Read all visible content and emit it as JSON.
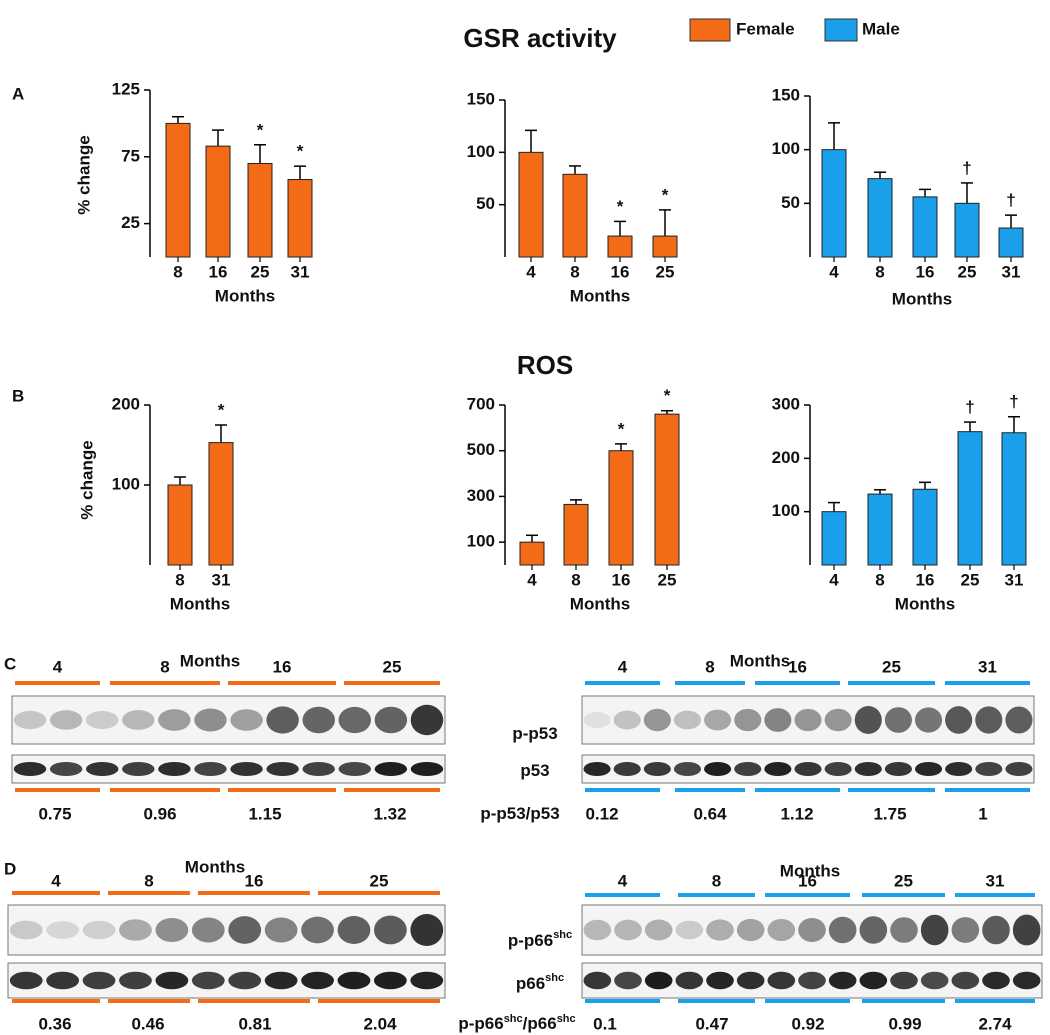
{
  "legend": [
    {
      "name": "Female",
      "color": "#f36a17"
    },
    {
      "name": "Male",
      "color": "#1aa0ea"
    }
  ],
  "panel_labels": [
    "A",
    "B",
    "C",
    "D"
  ],
  "section_titles": [
    "GSR activity",
    "ROS"
  ],
  "chart_data": [
    {
      "type": "bar",
      "categories": [
        8,
        16,
        25,
        31
      ],
      "values": [
        100,
        83,
        70,
        58
      ],
      "errors": [
        5,
        12,
        14,
        10
      ],
      "annotations": [
        null,
        null,
        "*",
        "*"
      ],
      "color": "#f36a17",
      "ylim": [
        0,
        125
      ],
      "yticks": [
        25,
        75,
        125
      ],
      "xlabel": "Months",
      "ylabel": "% change"
    },
    {
      "type": "bar",
      "categories": [
        4,
        8,
        16,
        25
      ],
      "values": [
        100,
        79,
        20,
        20
      ],
      "errors": [
        21,
        8,
        14,
        25
      ],
      "annotations": [
        null,
        null,
        "*",
        "*"
      ],
      "color": "#f36a17",
      "ylim": [
        0,
        150
      ],
      "yticks": [
        50,
        100,
        150
      ],
      "xlabel": "Months"
    },
    {
      "type": "bar",
      "categories": [
        4,
        8,
        16,
        25,
        31
      ],
      "values": [
        100,
        73,
        56,
        50,
        27
      ],
      "errors": [
        25,
        6,
        7,
        19,
        12
      ],
      "annotations": [
        null,
        null,
        null,
        "†",
        "†"
      ],
      "color": "#1aa0ea",
      "ylim": [
        0,
        150
      ],
      "yticks": [
        50,
        100,
        150
      ],
      "xlabel": "Months"
    },
    {
      "type": "bar",
      "categories": [
        8,
        31
      ],
      "values": [
        100,
        153
      ],
      "errors": [
        10,
        22
      ],
      "annotations": [
        null,
        "*"
      ],
      "color": "#f36a17",
      "ylim": [
        0,
        200
      ],
      "yticks": [
        100,
        200
      ],
      "xlabel": "Months",
      "ylabel": "% change"
    },
    {
      "type": "bar",
      "categories": [
        4,
        8,
        16,
        25
      ],
      "values": [
        100,
        265,
        500,
        660
      ],
      "errors": [
        30,
        20,
        30,
        15
      ],
      "annotations": [
        null,
        null,
        "*",
        "*"
      ],
      "color": "#f36a17",
      "ylim": [
        0,
        700
      ],
      "yticks": [
        100,
        300,
        500,
        700
      ],
      "xlabel": "Months"
    },
    {
      "type": "bar",
      "categories": [
        4,
        8,
        16,
        25,
        31
      ],
      "values": [
        100,
        133,
        142,
        250,
        248
      ],
      "errors": [
        17,
        8,
        13,
        18,
        30
      ],
      "annotations": [
        null,
        null,
        null,
        "†",
        "†"
      ],
      "color": "#1aa0ea",
      "ylim": [
        0,
        300
      ],
      "yticks": [
        100,
        200,
        300
      ],
      "xlabel": "Months"
    }
  ],
  "blots": {
    "C": {
      "labels": {
        "phospho": [
          "p-p53"
        ],
        "total": [
          "p53"
        ],
        "ratio": [
          "p-p53/p53"
        ]
      },
      "left": {
        "months": "Months",
        "groups": [
          4,
          8,
          16,
          25
        ],
        "ratios": [
          0.75,
          0.96,
          1.15,
          1.32
        ]
      },
      "right": {
        "months": "Months",
        "groups": [
          4,
          8,
          16,
          25,
          31
        ],
        "ratios": [
          0.12,
          0.64,
          1.12,
          1.75,
          1
        ]
      }
    },
    "D": {
      "labels": {
        "phospho": [
          "p-p66",
          "shc"
        ],
        "total": [
          "p66",
          "shc"
        ],
        "ratio": [
          "p-p66",
          "shc",
          "/p66",
          "shc"
        ]
      },
      "left": {
        "months": "Months",
        "groups": [
          4,
          8,
          16,
          25
        ],
        "ratios": [
          0.36,
          0.46,
          0.81,
          2.04
        ]
      },
      "right": {
        "months": "Months",
        "groups": [
          4,
          8,
          16,
          25,
          31
        ],
        "ratios": [
          0.1,
          0.47,
          0.92,
          0.99,
          2.74
        ]
      }
    }
  }
}
